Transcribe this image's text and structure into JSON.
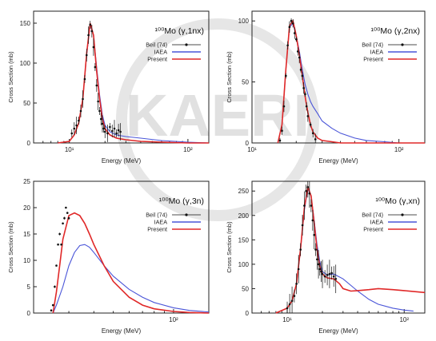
{
  "watermark": "KAERI",
  "colors": {
    "exp": "#111111",
    "iaea": "#4a55d8",
    "present": "#e02828",
    "axis": "#222222",
    "watermark": "#cfcfcf"
  },
  "chart_data": [
    {
      "type": "line",
      "xscale": "log",
      "title": "¹⁰⁰Mo (γ,1nx)",
      "xlabel": "Energy (MeV)",
      "ylabel": "Cross Section (mb)",
      "xlim": [
        5,
        150
      ],
      "ylim": [
        0,
        165
      ],
      "yticks": [
        0,
        50,
        100,
        150
      ],
      "xticks": [
        {
          "v": 10,
          "label": "10¹"
        },
        {
          "v": 100,
          "label": "10²"
        }
      ],
      "legend": "top-right",
      "series": [
        {
          "name": "Beil (74)",
          "kind": "points",
          "x": [
            10.5,
            11,
            11.5,
            12,
            12.5,
            13,
            13.5,
            14,
            14.5,
            15,
            15.5,
            16,
            16.5,
            17,
            17.5,
            18,
            18.5,
            19,
            19.5,
            20,
            21,
            22,
            23,
            24,
            25,
            26,
            27
          ],
          "y": [
            12,
            18,
            22,
            28,
            40,
            55,
            80,
            110,
            135,
            148,
            140,
            120,
            95,
            72,
            52,
            40,
            30,
            24,
            18,
            14,
            12,
            20,
            15,
            18,
            12,
            16,
            14
          ]
        },
        {
          "name": "IAEA",
          "kind": "line",
          "x": [
            8,
            10,
            11,
            12,
            13,
            14,
            15,
            16,
            17,
            18,
            19,
            20,
            22,
            25,
            30,
            40,
            60,
            100,
            150
          ],
          "y": [
            0,
            2,
            10,
            25,
            55,
            110,
            148,
            135,
            95,
            60,
            35,
            22,
            14,
            10,
            8,
            6,
            3,
            1,
            0
          ]
        },
        {
          "name": "Present",
          "kind": "line",
          "x": [
            8,
            10,
            11,
            12,
            13,
            14,
            15,
            16,
            17,
            18,
            19,
            20,
            22,
            25,
            30,
            40,
            60,
            100,
            150
          ],
          "y": [
            0,
            2,
            10,
            25,
            55,
            112,
            150,
            135,
            90,
            55,
            30,
            18,
            10,
            6,
            4,
            2,
            1,
            0,
            0
          ]
        }
      ]
    },
    {
      "type": "line",
      "xscale": "log",
      "title": "¹⁰⁰Mo (γ,2nx)",
      "xlabel": "Energy (MeV)",
      "ylabel": "Cross Section (mb)",
      "xlim": [
        10,
        150
      ],
      "ylim": [
        0,
        108
      ],
      "yticks": [
        0,
        50,
        100
      ],
      "xticks": [
        {
          "v": 10,
          "label": "10¹"
        },
        {
          "v": 100,
          "label": "10²"
        }
      ],
      "legend": "top-right",
      "series": [
        {
          "name": "Beil (74)",
          "kind": "points",
          "x": [
            15.5,
            16,
            16.5,
            17,
            17.5,
            18,
            18.5,
            19,
            19.5,
            20,
            20.5,
            21,
            21.5,
            22,
            22.5,
            23,
            23.5,
            24,
            25,
            26,
            27
          ],
          "y": [
            2,
            10,
            30,
            55,
            80,
            95,
            100,
            98,
            90,
            85,
            75,
            70,
            60,
            55,
            45,
            40,
            30,
            22,
            15,
            8,
            3
          ]
        },
        {
          "name": "IAEA",
          "kind": "line",
          "x": [
            15,
            16,
            17,
            18,
            19,
            20,
            21,
            22,
            23,
            24,
            25,
            26,
            28,
            30,
            35,
            40,
            50,
            60,
            80,
            100,
            150
          ],
          "y": [
            0,
            15,
            60,
            95,
            98,
            88,
            75,
            60,
            48,
            40,
            34,
            30,
            24,
            18,
            12,
            8,
            4,
            2,
            1,
            0,
            0
          ]
        },
        {
          "name": "Present",
          "kind": "line",
          "x": [
            15,
            16,
            17,
            18,
            19,
            20,
            21,
            22,
            23,
            24,
            25,
            26,
            28,
            30,
            35,
            40,
            50,
            60,
            80,
            100,
            150
          ],
          "y": [
            0,
            15,
            60,
            96,
            100,
            88,
            72,
            55,
            38,
            25,
            15,
            9,
            4,
            2,
            1,
            0,
            0,
            0,
            0,
            0,
            0
          ]
        }
      ]
    },
    {
      "type": "line",
      "xscale": "log",
      "title": "¹⁰⁰Mo (γ,3n)",
      "xlabel": "Energy (MeV)",
      "ylabel": "Cross Section (mb)",
      "xlim": [
        20,
        150
      ],
      "ylim": [
        0,
        25
      ],
      "yticks": [
        0,
        5,
        10,
        15,
        20,
        25
      ],
      "xticks": [
        {
          "v": 100,
          "label": "10²"
        }
      ],
      "legend": "top-right",
      "series": [
        {
          "name": "Beil (74)",
          "kind": "points",
          "x": [
            24.5,
            25,
            25.5,
            26,
            26.5,
            27,
            27.5,
            28,
            28.5,
            29,
            29.5,
            30
          ],
          "y": [
            0.5,
            1.5,
            5,
            9,
            13,
            15,
            13,
            17,
            18,
            20,
            19,
            18
          ]
        },
        {
          "name": "IAEA",
          "kind": "line",
          "x": [
            25,
            26,
            28,
            30,
            32,
            34,
            36,
            38,
            40,
            45,
            50,
            60,
            70,
            80,
            100,
            120,
            150
          ],
          "y": [
            0,
            1.5,
            5,
            9,
            11.5,
            12.8,
            13,
            12.5,
            11.5,
            9,
            7,
            4.5,
            3,
            2,
            1,
            0.5,
            0.2
          ]
        },
        {
          "name": "Present",
          "kind": "line",
          "x": [
            25,
            26,
            27,
            28,
            30,
            32,
            34,
            36,
            38,
            40,
            45,
            50,
            60,
            70,
            80,
            100,
            120,
            150
          ],
          "y": [
            0,
            4,
            9,
            14,
            18.5,
            19,
            18.5,
            17,
            15,
            13,
            9,
            6,
            3,
            1.5,
            0.8,
            0.3,
            0.1,
            0
          ]
        }
      ]
    },
    {
      "type": "line",
      "xscale": "log",
      "title": "¹⁰⁰Mo (γ,xn)",
      "xlabel": "Energy (MeV)",
      "ylabel": "Cross Section (mb)",
      "xlim": [
        5,
        150
      ],
      "ylim": [
        0,
        270
      ],
      "yticks": [
        0,
        50,
        100,
        150,
        200,
        250
      ],
      "xticks": [
        {
          "v": 10,
          "label": "10¹"
        },
        {
          "v": 100,
          "label": "10²"
        }
      ],
      "legend": "top-right",
      "series": [
        {
          "name": "Beil (74)",
          "kind": "points",
          "x": [
            10,
            10.5,
            11,
            11.5,
            12,
            12.5,
            13,
            13.5,
            14,
            14.5,
            15,
            15.5,
            16,
            16.5,
            17,
            17.5,
            18,
            18.5,
            19,
            19.5,
            20,
            21,
            22,
            23,
            24,
            25,
            26
          ],
          "y": [
            10,
            18,
            25,
            35,
            60,
            90,
            130,
            180,
            220,
            250,
            258,
            245,
            220,
            190,
            160,
            130,
            110,
            100,
            90,
            85,
            80,
            75,
            78,
            80,
            82,
            75,
            70
          ]
        },
        {
          "name": "IAEA",
          "kind": "line",
          "x": [
            8,
            10,
            11,
            12,
            13,
            14,
            15,
            16,
            17,
            18,
            19,
            20,
            22,
            25,
            30,
            40,
            50,
            60,
            80,
            100,
            120
          ],
          "y": [
            0,
            10,
            25,
            60,
            130,
            210,
            255,
            240,
            190,
            140,
            105,
            85,
            78,
            80,
            70,
            45,
            28,
            18,
            10,
            6,
            4
          ]
        },
        {
          "name": "Present",
          "kind": "line",
          "x": [
            8,
            10,
            11,
            12,
            13,
            14,
            15,
            16,
            17,
            18,
            19,
            20,
            22,
            25,
            28,
            30,
            35,
            40,
            50,
            60,
            80,
            100,
            150
          ],
          "y": [
            0,
            10,
            25,
            60,
            132,
            215,
            258,
            240,
            185,
            130,
            95,
            80,
            72,
            70,
            60,
            50,
            45,
            46,
            48,
            50,
            48,
            46,
            42
          ]
        }
      ]
    }
  ]
}
